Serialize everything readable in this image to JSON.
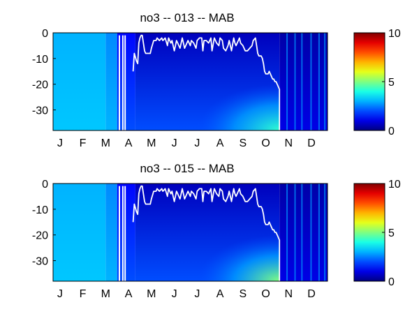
{
  "chart_data": [
    {
      "type": "heatmap",
      "title": "no3 -- 013 -- MAB",
      "xlabel": "",
      "ylabel": "",
      "x_ticks": [
        "J",
        "F",
        "M",
        "A",
        "M",
        "J",
        "J",
        "A",
        "S",
        "O",
        "N",
        "D"
      ],
      "y_ticks": [
        "0",
        "-10",
        "-20",
        "-30"
      ],
      "y_tick_values": [
        0,
        -10,
        -20,
        -30
      ],
      "ylim": [
        -38,
        0
      ],
      "xlim_months": [
        0,
        12
      ],
      "colorbar": {
        "min": 0,
        "max": 10,
        "ticks": [
          "0",
          "5",
          "10"
        ],
        "tick_values": [
          0,
          5,
          10
        ],
        "colormap": "jet"
      },
      "grid": false,
      "line": {
        "color": "#ffffff",
        "x_month": [
          3.5,
          3.55,
          3.65,
          3.7,
          3.75,
          3.8,
          3.85,
          3.9,
          4.0,
          4.05,
          4.15,
          4.25,
          4.3,
          4.4,
          4.5,
          4.55,
          4.65,
          4.75,
          4.8,
          4.9,
          5.0,
          5.05,
          5.15,
          5.2,
          5.3,
          5.4,
          5.45,
          5.55,
          5.65,
          5.7,
          5.75,
          5.85,
          5.9,
          6.0,
          6.05,
          6.15,
          6.25,
          6.3,
          6.4,
          6.5,
          6.55,
          6.6,
          6.7,
          6.8,
          6.9,
          6.95,
          7.05,
          7.15,
          7.25,
          7.3,
          7.4,
          7.45,
          7.55,
          7.65,
          7.7,
          7.8,
          7.9,
          7.95,
          8.0,
          8.1,
          8.15,
          8.2,
          8.3,
          8.4,
          8.5,
          8.6,
          8.7,
          8.75,
          8.85,
          8.95,
          9.0,
          9.1,
          9.15,
          9.2,
          9.25,
          9.3,
          9.4,
          9.45,
          9.5,
          9.55,
          9.6,
          9.65,
          9.7,
          9.75,
          9.8,
          9.85,
          9.9,
          9.9
        ],
        "y_depth": [
          -15,
          -8,
          -11,
          -12,
          -4,
          -2,
          -1,
          -1,
          -7,
          -8,
          -8,
          -8,
          -6,
          -3,
          -3,
          -2,
          -3,
          -2,
          -3,
          -2,
          -5,
          -2,
          -4,
          -3,
          -7,
          -3,
          -4,
          -6,
          -2,
          -4,
          -6,
          -4,
          -3,
          -5,
          -3,
          -4,
          -6,
          -3,
          -2,
          -2,
          -7,
          -3,
          -3,
          -4,
          -2,
          -7,
          -2,
          -4,
          -5,
          -2,
          -3,
          -6,
          -7,
          -5,
          -3,
          -7,
          -2,
          -4,
          -5,
          -3,
          -2,
          -4,
          -5,
          -7,
          -7,
          -6,
          -5,
          -3,
          -2,
          -8,
          -9,
          -9,
          -10,
          -12,
          -15,
          -16,
          -16,
          -15,
          -16,
          -17,
          -18,
          -18,
          -19,
          -19,
          -20,
          -21,
          -22,
          -38
        ]
      },
      "spikes_month": [
        2.9,
        3.05,
        3.15
      ],
      "heat_values": {
        "month_breaks": [
          0,
          2.3,
          2.8,
          3.6,
          9.9,
          12
        ],
        "surface": [
          3.0,
          2.6,
          1.3,
          0.6,
          0.4
        ],
        "bottom": [
          3.2,
          3.0,
          2.0,
          2.0,
          1.0
        ],
        "max_value": 4.2
      }
    },
    {
      "type": "heatmap",
      "title": "no3 -- 015 -- MAB",
      "xlabel": "",
      "ylabel": "",
      "x_ticks": [
        "J",
        "F",
        "M",
        "A",
        "M",
        "J",
        "J",
        "A",
        "S",
        "O",
        "N",
        "D"
      ],
      "y_ticks": [
        "0",
        "-10",
        "-20",
        "-30"
      ],
      "y_tick_values": [
        0,
        -10,
        -20,
        -30
      ],
      "ylim": [
        -38,
        0
      ],
      "xlim_months": [
        0,
        12
      ],
      "colorbar": {
        "min": 0,
        "max": 10,
        "ticks": [
          "0",
          "5",
          "10"
        ],
        "tick_values": [
          0,
          5,
          10
        ],
        "colormap": "jet"
      },
      "grid": false,
      "line": {
        "color": "#ffffff",
        "x_month": [
          3.5,
          3.55,
          3.65,
          3.7,
          3.75,
          3.8,
          3.85,
          3.9,
          4.0,
          4.05,
          4.15,
          4.25,
          4.3,
          4.4,
          4.5,
          4.55,
          4.65,
          4.75,
          4.8,
          4.9,
          5.0,
          5.05,
          5.15,
          5.2,
          5.3,
          5.4,
          5.45,
          5.55,
          5.65,
          5.7,
          5.75,
          5.85,
          5.9,
          6.0,
          6.05,
          6.15,
          6.25,
          6.3,
          6.4,
          6.5,
          6.55,
          6.6,
          6.7,
          6.8,
          6.9,
          6.95,
          7.05,
          7.15,
          7.25,
          7.3,
          7.4,
          7.45,
          7.55,
          7.65,
          7.7,
          7.8,
          7.9,
          7.95,
          8.0,
          8.1,
          8.15,
          8.2,
          8.3,
          8.4,
          8.5,
          8.6,
          8.7,
          8.75,
          8.85,
          8.95,
          9.0,
          9.1,
          9.15,
          9.2,
          9.25,
          9.3,
          9.4,
          9.45,
          9.5,
          9.55,
          9.6,
          9.65,
          9.7,
          9.75,
          9.8,
          9.85,
          9.9,
          9.9
        ],
        "y_depth": [
          -15,
          -8,
          -11,
          -12,
          -4,
          -2,
          -1,
          -1,
          -7,
          -8,
          -8,
          -8,
          -6,
          -3,
          -3,
          -2,
          -3,
          -2,
          -3,
          -2,
          -5,
          -2,
          -4,
          -3,
          -7,
          -3,
          -4,
          -6,
          -2,
          -4,
          -6,
          -4,
          -3,
          -5,
          -3,
          -4,
          -6,
          -3,
          -2,
          -2,
          -7,
          -3,
          -3,
          -4,
          -2,
          -7,
          -2,
          -4,
          -5,
          -2,
          -3,
          -6,
          -7,
          -5,
          -3,
          -7,
          -2,
          -4,
          -5,
          -3,
          -2,
          -4,
          -5,
          -7,
          -7,
          -6,
          -5,
          -3,
          -2,
          -8,
          -9,
          -9,
          -10,
          -12,
          -15,
          -16,
          -16,
          -15,
          -16,
          -17,
          -18,
          -18,
          -19,
          -19,
          -20,
          -21,
          -22,
          -38
        ]
      },
      "spikes_month": [
        2.9,
        3.05,
        3.15
      ],
      "heat_values": {
        "month_breaks": [
          0,
          2.3,
          2.8,
          3.6,
          9.9,
          12
        ],
        "surface": [
          3.0,
          2.6,
          1.3,
          0.6,
          0.4
        ],
        "bottom": [
          3.2,
          3.0,
          2.0,
          2.0,
          1.0
        ],
        "max_value": 5.0
      }
    }
  ]
}
